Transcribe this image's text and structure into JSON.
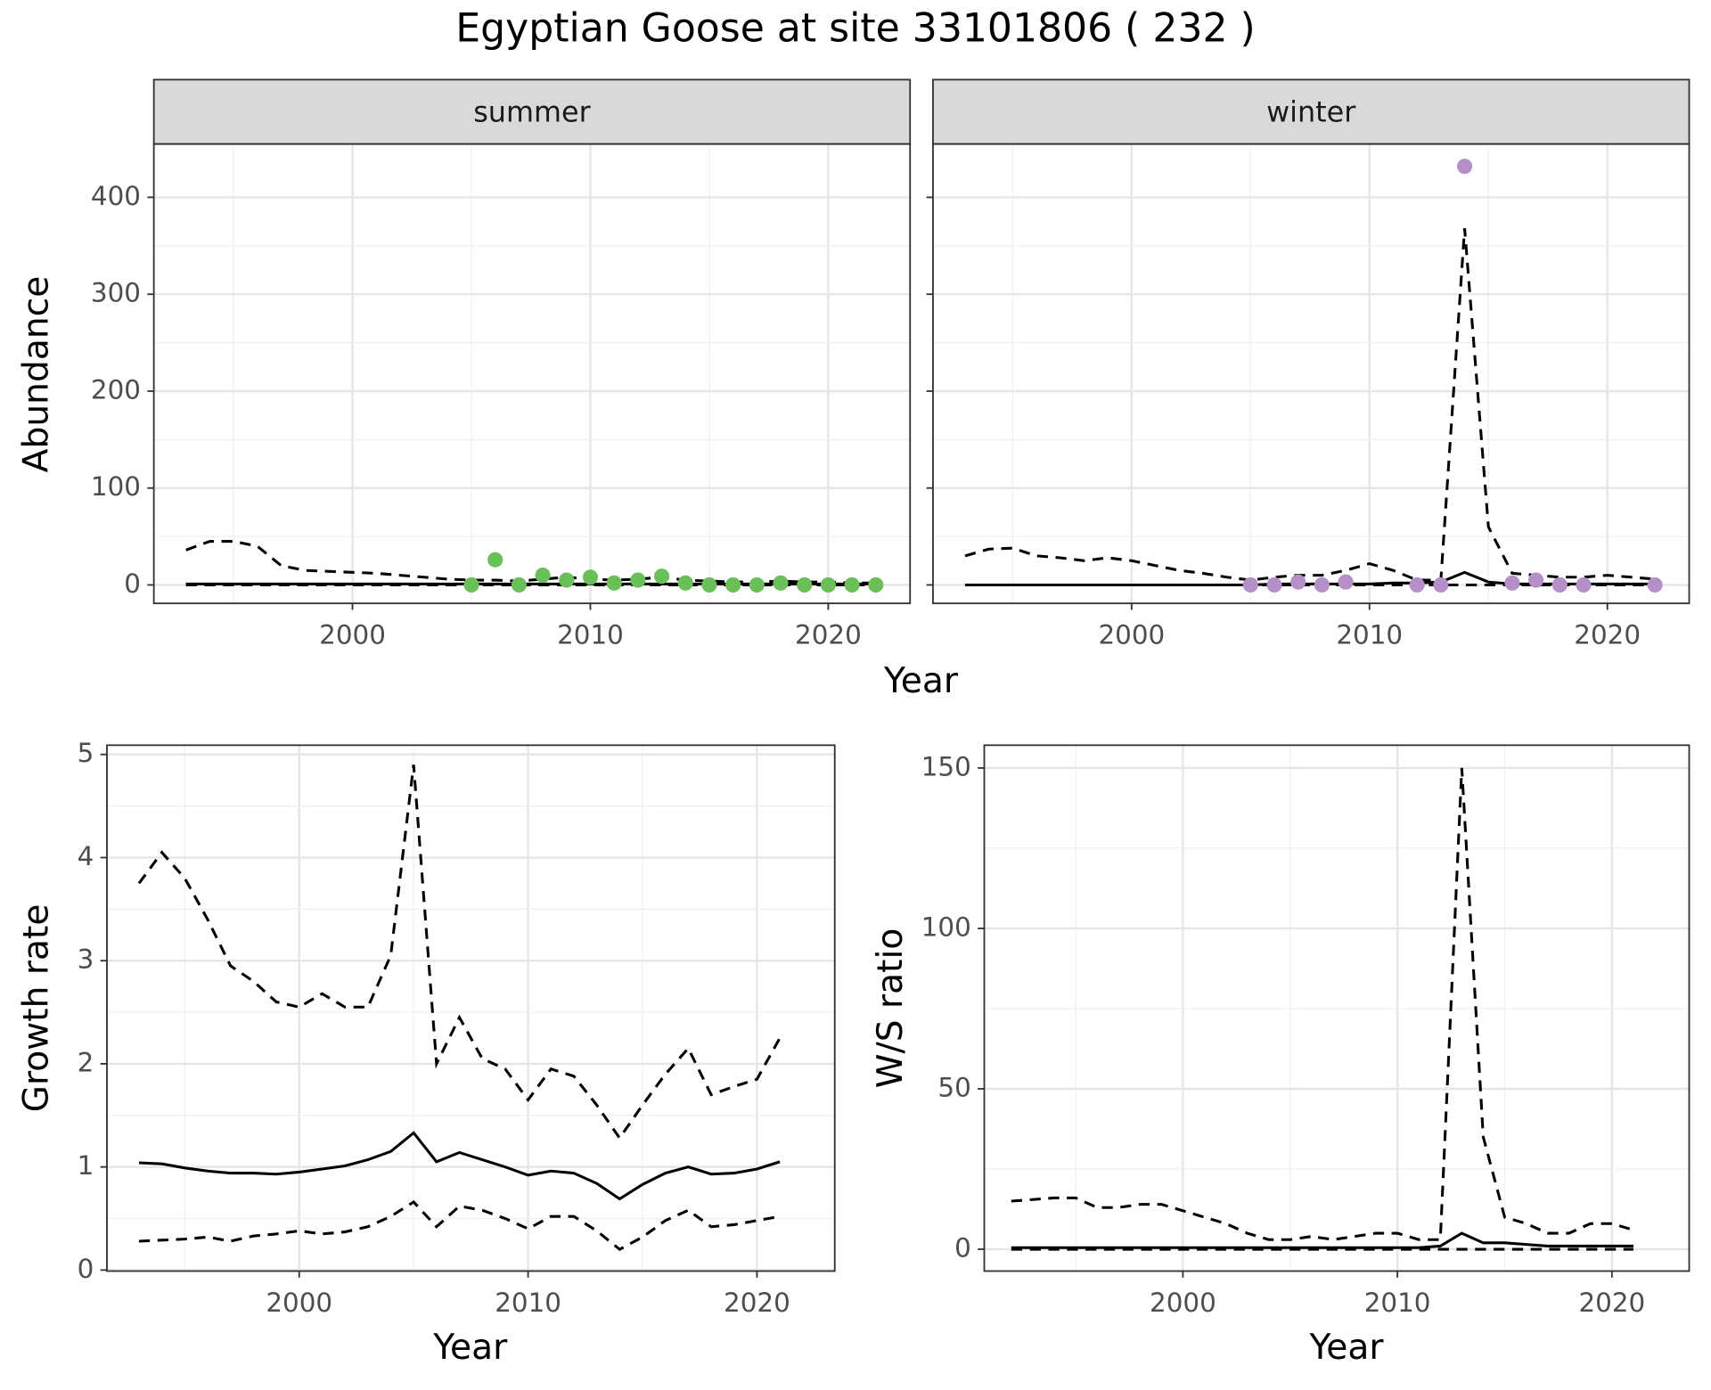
{
  "title": "Egyptian Goose at site 33101806 ( 232 )",
  "chart_data": [
    {
      "type": "line",
      "facet": "summer",
      "x_label": "Year",
      "y_label": "Abundance",
      "grid": true,
      "x": [
        1993,
        1994,
        1995,
        1996,
        1997,
        1998,
        1999,
        2000,
        2001,
        2002,
        2003,
        2004,
        2005,
        2006,
        2007,
        2008,
        2009,
        2010,
        2011,
        2012,
        2013,
        2014,
        2015,
        2016,
        2017,
        2018,
        2019,
        2020,
        2021,
        2022
      ],
      "xlim": [
        1991.65,
        2023.44
      ],
      "xticks": [
        2000,
        2010,
        2020
      ],
      "ylim": [
        -19,
        455
      ],
      "yticks": [
        0,
        100,
        200,
        300,
        400
      ],
      "series": [
        {
          "color": "#000000",
          "dash": "dashed",
          "values": [
            36,
            45,
            45,
            40,
            20,
            15,
            14,
            13,
            12,
            10,
            8,
            6,
            5,
            5,
            4,
            6,
            8,
            6,
            5,
            6,
            8,
            5,
            4,
            3,
            3,
            4,
            3,
            3,
            2,
            2
          ]
        },
        {
          "color": "#000000",
          "dash": "solid",
          "values": [
            1,
            1,
            1,
            1,
            1,
            1,
            1,
            1,
            1,
            1,
            1,
            1,
            1,
            1,
            1,
            1,
            1,
            1,
            1,
            1,
            1,
            1,
            1,
            1,
            1,
            1,
            1,
            1,
            1,
            1
          ]
        },
        {
          "color": "#000000",
          "dash": "dashed",
          "values": [
            0,
            0,
            0,
            0,
            0,
            0,
            0,
            0,
            0,
            0,
            0,
            0,
            0,
            0,
            0,
            0,
            0,
            0,
            0,
            0,
            0,
            0,
            0,
            0,
            0,
            0,
            0,
            0,
            0,
            0
          ]
        }
      ],
      "points": {
        "color": "#6bbf59",
        "x": [
          2005,
          2006,
          2007,
          2008,
          2009,
          2010,
          2011,
          2012,
          2013,
          2014,
          2015,
          2016,
          2017,
          2018,
          2019,
          2020,
          2021,
          2022
        ],
        "values": [
          0,
          26,
          0,
          10,
          5,
          8,
          2,
          5,
          9,
          2,
          0,
          0,
          0,
          2,
          0,
          0,
          0,
          0
        ]
      }
    },
    {
      "type": "line",
      "facet": "winter",
      "grid": true,
      "x": [
        1993,
        1994,
        1995,
        1996,
        1997,
        1998,
        1999,
        2000,
        2001,
        2002,
        2003,
        2004,
        2005,
        2006,
        2007,
        2008,
        2009,
        2010,
        2011,
        2012,
        2013,
        2014,
        2015,
        2016,
        2017,
        2018,
        2019,
        2020,
        2021,
        2022
      ],
      "xlim": [
        1991.65,
        2023.44
      ],
      "xticks": [
        2000,
        2010,
        2020
      ],
      "ylim": [
        -19,
        455
      ],
      "series": [
        {
          "color": "#000000",
          "dash": "dashed",
          "values": [
            30,
            37,
            38,
            30,
            28,
            25,
            28,
            25,
            20,
            15,
            12,
            8,
            5,
            8,
            10,
            10,
            15,
            22,
            15,
            5,
            5,
            368,
            60,
            12,
            10,
            8,
            8,
            10,
            8,
            6
          ]
        },
        {
          "color": "#000000",
          "dash": "solid",
          "values": [
            0,
            0,
            0,
            0,
            0,
            0,
            0,
            0,
            0,
            0,
            0,
            0,
            0,
            1,
            1,
            1,
            1,
            1,
            2,
            2,
            3,
            13,
            3,
            1,
            1,
            1,
            1,
            1,
            1,
            1
          ]
        },
        {
          "color": "#000000",
          "dash": "dashed",
          "values": [
            0,
            0,
            0,
            0,
            0,
            0,
            0,
            0,
            0,
            0,
            0,
            0,
            0,
            0,
            0,
            0,
            0,
            0,
            0,
            0,
            0,
            0,
            0,
            0,
            0,
            0,
            0,
            0,
            0,
            0
          ]
        }
      ],
      "points": {
        "color": "#b48fc8",
        "x": [
          2005,
          2006,
          2007,
          2008,
          2009,
          2012,
          2013,
          2014,
          2016,
          2017,
          2018,
          2019,
          2022
        ],
        "values": [
          0,
          0,
          3,
          0,
          3,
          0,
          0,
          432,
          2,
          5,
          0,
          0,
          0
        ]
      }
    },
    {
      "type": "line",
      "x_label": "Year",
      "y_label": "Growth rate",
      "grid": true,
      "x": [
        1993,
        1994,
        1995,
        1996,
        1997,
        1998,
        1999,
        2000,
        2001,
        2002,
        2003,
        2004,
        2005,
        2006,
        2007,
        2008,
        2009,
        2010,
        2011,
        2012,
        2013,
        2014,
        2015,
        2016,
        2017,
        2018,
        2019,
        2020,
        2021
      ],
      "xlim": [
        1991.6,
        2023.4
      ],
      "xticks": [
        2000,
        2010,
        2020
      ],
      "ylim": [
        -0.01,
        5.09
      ],
      "yticks": [
        0,
        1,
        2,
        3,
        4,
        5
      ],
      "series": [
        {
          "color": "#000000",
          "dash": "dashed",
          "values": [
            3.75,
            4.05,
            3.8,
            3.4,
            2.95,
            2.8,
            2.6,
            2.55,
            2.68,
            2.55,
            2.55,
            3.05,
            4.9,
            2.0,
            2.45,
            2.05,
            1.95,
            1.65,
            1.95,
            1.88,
            1.6,
            1.28,
            1.6,
            1.9,
            2.15,
            1.7,
            1.78,
            1.85,
            2.25
          ]
        },
        {
          "color": "#000000",
          "dash": "solid",
          "values": [
            1.04,
            1.03,
            0.99,
            0.96,
            0.94,
            0.94,
            0.93,
            0.95,
            0.98,
            1.01,
            1.07,
            1.15,
            1.33,
            1.05,
            1.14,
            1.07,
            1.0,
            0.92,
            0.96,
            0.94,
            0.84,
            0.69,
            0.83,
            0.94,
            1.0,
            0.93,
            0.94,
            0.98,
            1.05
          ]
        },
        {
          "color": "#000000",
          "dash": "dashed",
          "values": [
            0.28,
            0.29,
            0.3,
            0.32,
            0.28,
            0.33,
            0.35,
            0.38,
            0.35,
            0.37,
            0.42,
            0.52,
            0.66,
            0.42,
            0.62,
            0.58,
            0.5,
            0.4,
            0.52,
            0.52,
            0.38,
            0.2,
            0.32,
            0.48,
            0.58,
            0.42,
            0.44,
            0.48,
            0.52
          ]
        }
      ]
    },
    {
      "type": "line",
      "x_label": "Year",
      "y_label": "W/S ratio",
      "grid": true,
      "x": [
        1992,
        1993,
        1994,
        1995,
        1996,
        1997,
        1998,
        1999,
        2000,
        2001,
        2002,
        2003,
        2004,
        2005,
        2006,
        2007,
        2008,
        2009,
        2010,
        2011,
        2012,
        2013,
        2014,
        2015,
        2016,
        2017,
        2018,
        2019,
        2020,
        2021
      ],
      "xlim": [
        1990.74,
        2023.6
      ],
      "xticks": [
        2000,
        2010,
        2020
      ],
      "ylim": [
        -6.8,
        157.1
      ],
      "yticks": [
        0,
        50,
        100,
        150
      ],
      "series": [
        {
          "color": "#000000",
          "dash": "dashed",
          "values": [
            15,
            15.5,
            16,
            16,
            13,
            13,
            14,
            14,
            12,
            10,
            8,
            5,
            3,
            3,
            4,
            3,
            4,
            5,
            5,
            3,
            3,
            150,
            35,
            10,
            8,
            5,
            5,
            8,
            8,
            6
          ]
        },
        {
          "color": "#000000",
          "dash": "solid",
          "values": [
            0.5,
            0.5,
            0.5,
            0.5,
            0.5,
            0.5,
            0.5,
            0.5,
            0.5,
            0.5,
            0.5,
            0.5,
            0.5,
            0.5,
            0.5,
            0.5,
            0.5,
            0.5,
            0.5,
            0.5,
            1,
            5,
            2,
            2,
            1.5,
            1,
            1,
            1,
            1,
            1
          ]
        },
        {
          "color": "#000000",
          "dash": "dashed",
          "values": [
            0,
            0,
            0,
            0,
            0,
            0,
            0,
            0,
            0,
            0,
            0,
            0,
            0,
            0,
            0,
            0,
            0,
            0,
            0,
            0,
            0,
            0,
            0,
            0,
            0,
            0,
            0,
            0,
            0,
            0
          ]
        }
      ]
    }
  ]
}
